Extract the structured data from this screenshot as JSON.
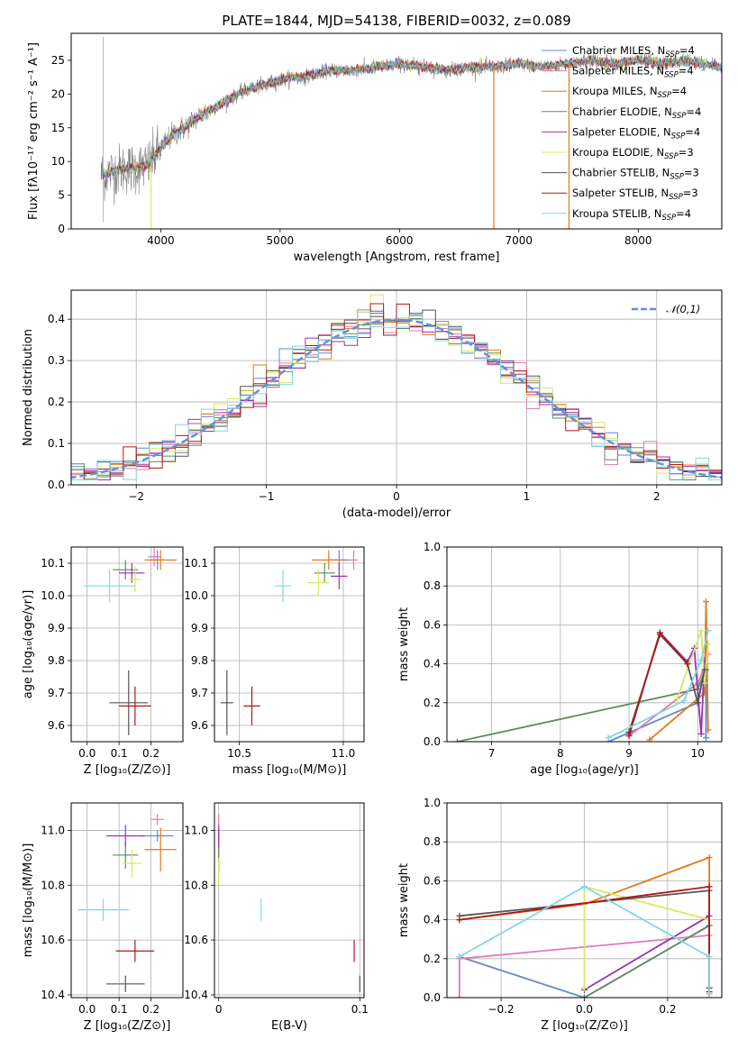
{
  "title": "PLATE=1844, MJD=54138, FIBERID=0032, z=0.089",
  "colors": {
    "Chabrier MILES": "#6685d8",
    "Salpeter MILES": "#e07ab4",
    "Kroupa MILES": "#e07a18",
    "Chabrier ELODIE": "#5e8a5e",
    "Salpeter ELODIE": "#9a30b8",
    "Kroupa ELODIE": "#d8e860",
    "Chabrier STELIB": "#555555",
    "Salpeter STELIB": "#b01818",
    "Kroupa STELIB": "#80d8e0"
  },
  "chart_data": [
    {
      "id": "spectrum",
      "type": "line",
      "xlabel": "wavelength [Angstrom, rest frame]",
      "ylabel": "Flux [fλ10⁻¹⁷ erg cm⁻² s⁻¹ A⁻¹]",
      "xlim": [
        3250,
        8700
      ],
      "ylim": [
        0,
        29
      ],
      "xticks": [
        4000,
        5000,
        6000,
        7000,
        8000
      ],
      "yticks": [
        0,
        5,
        10,
        15,
        20,
        25
      ],
      "grid": false,
      "legend_position": "upper-right",
      "legend": [
        {
          "name": "Chabrier MILES",
          "base": "Chabrier MILES, N",
          "sub": "SSP",
          "tail": "=4"
        },
        {
          "name": "Salpeter MILES",
          "base": "Salpeter MILES, N",
          "sub": "SSP",
          "tail": "=4"
        },
        {
          "name": "Kroupa MILES",
          "base": "Kroupa MILES, N",
          "sub": "SSP",
          "tail": "=4"
        },
        {
          "name": "Chabrier ELODIE",
          "base": "Chabrier ELODIE, N",
          "sub": "SSP",
          "tail": "=4"
        },
        {
          "name": "Salpeter ELODIE",
          "base": "Salpeter ELODIE, N",
          "sub": "SSP",
          "tail": "=4"
        },
        {
          "name": "Kroupa ELODIE",
          "base": "Kroupa ELODIE, N",
          "sub": "SSP",
          "tail": "=3"
        },
        {
          "name": "Chabrier STELIB",
          "base": "Chabrier STELIB, N",
          "sub": "SSP",
          "tail": "=3"
        },
        {
          "name": "Salpeter STELIB",
          "base": "Salpeter STELIB, N",
          "sub": "SSP",
          "tail": "=3"
        },
        {
          "name": "Kroupa STELIB",
          "base": "Kroupa STELIB, N",
          "sub": "SSP",
          "tail": "=4"
        }
      ],
      "continuum": {
        "x": [
          3500,
          3600,
          3700,
          3800,
          3900,
          4000,
          4100,
          4200,
          4300,
          4400,
          4500,
          4600,
          4700,
          4800,
          4900,
          5000,
          5100,
          5200,
          5300,
          5400,
          5600,
          5800,
          6000,
          6200,
          6400,
          6600,
          6800,
          7000,
          7200,
          7400,
          7600,
          7800,
          8000,
          8200,
          8400,
          8700
        ],
        "y": [
          8,
          8.5,
          9,
          9,
          9.5,
          12,
          14,
          15,
          16.5,
          17.5,
          18.5,
          19.5,
          20.5,
          21,
          21.5,
          22,
          22.5,
          22.5,
          23,
          23.5,
          23.5,
          24,
          24.5,
          24,
          23.5,
          24,
          24,
          24.5,
          24,
          24.5,
          25,
          24.5,
          25,
          24.5,
          25,
          24
        ]
      }
    },
    {
      "id": "residuals",
      "type": "line",
      "xlabel": "(data-model)/error",
      "ylabel": "Normed distribution",
      "xlim": [
        -2.5,
        2.5
      ],
      "ylim": [
        0,
        0.47
      ],
      "xticks": [
        -2,
        -1,
        0,
        1,
        2
      ],
      "yticks": [
        0.0,
        0.1,
        0.2,
        0.3,
        0.4
      ],
      "grid": true,
      "legend_position": "upper-right",
      "legend": [
        {
          "name": "𝒩(0,1)"
        }
      ],
      "bin_width": 0.1,
      "gaussian": {
        "mu": 0,
        "sigma": 1
      }
    },
    {
      "id": "age-vs-Z",
      "type": "scatter",
      "xlabel": "Z [log₁₀(Z/Z⊙)]",
      "ylabel": "age  [log₁₀(age/yr)]",
      "xlim": [
        -0.05,
        0.3
      ],
      "ylim": [
        9.55,
        10.15
      ],
      "xticks": [
        0.0,
        0.1,
        0.2
      ],
      "yticks": [
        9.6,
        9.7,
        9.8,
        9.9,
        10.0,
        10.1
      ],
      "grid": true,
      "points": [
        {
          "series": "Chabrier MILES",
          "x": 0.22,
          "y": 10.11,
          "xerr": 0.02,
          "yerr": 0.03
        },
        {
          "series": "Salpeter MILES",
          "x": 0.21,
          "y": 10.12,
          "xerr": 0.02,
          "yerr": 0.03
        },
        {
          "series": "Kroupa MILES",
          "x": 0.23,
          "y": 10.11,
          "xerr": 0.05,
          "yerr": 0.03
        },
        {
          "series": "Chabrier ELODIE",
          "x": 0.12,
          "y": 10.08,
          "xerr": 0.04,
          "yerr": 0.03
        },
        {
          "series": "Salpeter ELODIE",
          "x": 0.14,
          "y": 10.07,
          "xerr": 0.04,
          "yerr": 0.03
        },
        {
          "series": "Kroupa ELODIE",
          "x": 0.15,
          "y": 10.05,
          "xerr": 0.02,
          "yerr": 0.04
        },
        {
          "series": "Chabrier STELIB",
          "x": 0.13,
          "y": 9.67,
          "xerr": 0.06,
          "yerr": 0.1
        },
        {
          "series": "Salpeter STELIB",
          "x": 0.15,
          "y": 9.66,
          "xerr": 0.05,
          "yerr": 0.06
        },
        {
          "series": "Kroupa STELIB",
          "x": 0.07,
          "y": 10.03,
          "xerr": 0.08,
          "yerr": 0.05
        }
      ]
    },
    {
      "id": "age-vs-mass",
      "type": "scatter",
      "xlabel": "mass [log₁₀(M/M⊙)]",
      "ylabel": "",
      "xlim": [
        10.38,
        11.1
      ],
      "ylim": [
        9.55,
        10.15
      ],
      "xticks": [
        10.5,
        11.0
      ],
      "yticks": [
        9.6,
        9.7,
        9.8,
        9.9,
        10.0,
        10.1
      ],
      "grid": true,
      "points": [
        {
          "series": "Chabrier MILES",
          "x": 10.98,
          "y": 10.11,
          "xerr": 0.05,
          "yerr": 0.03
        },
        {
          "series": "Salpeter MILES",
          "x": 11.05,
          "y": 10.11,
          "xerr": 0.02,
          "yerr": 0.03
        },
        {
          "series": "Kroupa MILES",
          "x": 10.93,
          "y": 10.11,
          "xerr": 0.08,
          "yerr": 0.03
        },
        {
          "series": "Chabrier ELODIE",
          "x": 10.91,
          "y": 10.07,
          "xerr": 0.05,
          "yerr": 0.03
        },
        {
          "series": "Salpeter ELODIE",
          "x": 10.98,
          "y": 10.06,
          "xerr": 0.04,
          "yerr": 0.04
        },
        {
          "series": "Kroupa ELODIE",
          "x": 10.88,
          "y": 10.04,
          "xerr": 0.05,
          "yerr": 0.04
        },
        {
          "series": "Chabrier STELIB",
          "x": 10.44,
          "y": 9.67,
          "xerr": 0.03,
          "yerr": 0.1
        },
        {
          "series": "Salpeter STELIB",
          "x": 10.56,
          "y": 9.66,
          "xerr": 0.04,
          "yerr": 0.06
        },
        {
          "series": "Kroupa STELIB",
          "x": 10.71,
          "y": 10.03,
          "xerr": 0.04,
          "yerr": 0.05
        }
      ]
    },
    {
      "id": "weight-vs-age",
      "type": "line",
      "xlabel": "age  [log₁₀(age/yr)]",
      "ylabel": "mass weight",
      "xlim": [
        6.35,
        10.35
      ],
      "ylim": [
        0,
        1.0
      ],
      "xticks": [
        7,
        8,
        9,
        10
      ],
      "yticks": [
        0.0,
        0.2,
        0.4,
        0.6,
        0.8,
        1.0
      ],
      "grid": true,
      "series": [
        {
          "name": "Chabrier MILES",
          "x": [
            8.7,
            10.0,
            10.12,
            10.12
          ],
          "y": [
            0.0,
            0.2,
            0.4,
            0.02
          ]
        },
        {
          "name": "Salpeter MILES",
          "x": [
            9.0,
            10.0,
            10.12,
            10.15
          ],
          "y": [
            0.03,
            0.3,
            0.4,
            0.45
          ]
        },
        {
          "name": "Kroupa MILES",
          "x": [
            9.3,
            10.1,
            10.12,
            10.15
          ],
          "y": [
            0.01,
            0.25,
            0.72,
            0.06
          ]
        },
        {
          "name": "Chabrier ELODIE",
          "x": [
            6.5,
            10.0,
            10.1,
            10.12
          ],
          "y": [
            0.0,
            0.27,
            0.36,
            0.37
          ]
        },
        {
          "name": "Salpeter ELODIE",
          "x": [
            9.0,
            9.45,
            9.85,
            9.95,
            10.05,
            10.1
          ],
          "y": [
            0.04,
            0.56,
            0.41,
            0.48,
            0.04,
            0.42
          ]
        },
        {
          "name": "Kroupa ELODIE",
          "x": [
            9.7,
            10.05,
            10.1,
            10.15
          ],
          "y": [
            0.22,
            0.57,
            0.3,
            0.5
          ]
        },
        {
          "name": "Chabrier STELIB",
          "x": [
            9.0,
            9.45,
            9.85,
            10.0,
            10.1
          ],
          "y": [
            0.05,
            0.55,
            0.4,
            0.2,
            0.37
          ]
        },
        {
          "name": "Salpeter STELIB",
          "x": [
            9.0,
            9.45,
            9.85
          ],
          "y": [
            0.03,
            0.56,
            0.4
          ]
        },
        {
          "name": "Kroupa STELIB",
          "x": [
            8.7,
            9.8,
            10.05,
            10.15
          ],
          "y": [
            0.02,
            0.21,
            0.42,
            0.57
          ]
        }
      ]
    },
    {
      "id": "mass-vs-Z",
      "type": "scatter",
      "xlabel": "Z [log₁₀(Z/Z⊙)]",
      "ylabel": "mass [log₁₀(M/M⊙)]",
      "xlim": [
        -0.05,
        0.3
      ],
      "ylim": [
        10.39,
        11.1
      ],
      "xticks": [
        0.0,
        0.1,
        0.2
      ],
      "yticks": [
        10.4,
        10.6,
        10.8,
        11.0
      ],
      "grid": true,
      "points": [
        {
          "series": "Chabrier MILES",
          "x": 0.22,
          "y": 10.98,
          "xerr": 0.05,
          "yerr": 0.02
        },
        {
          "series": "Salpeter MILES",
          "x": 0.22,
          "y": 11.04,
          "xerr": 0.02,
          "yerr": 0.02
        },
        {
          "series": "Kroupa MILES",
          "x": 0.23,
          "y": 10.93,
          "xerr": 0.05,
          "yerr": 0.08
        },
        {
          "series": "Chabrier ELODIE",
          "x": 0.12,
          "y": 10.91,
          "xerr": 0.04,
          "yerr": 0.05
        },
        {
          "series": "Salpeter ELODIE",
          "x": 0.12,
          "y": 10.98,
          "xerr": 0.06,
          "yerr": 0.04
        },
        {
          "series": "Kroupa ELODIE",
          "x": 0.14,
          "y": 10.88,
          "xerr": 0.03,
          "yerr": 0.05
        },
        {
          "series": "Chabrier STELIB",
          "x": 0.12,
          "y": 10.44,
          "xerr": 0.06,
          "yerr": 0.03
        },
        {
          "series": "Salpeter STELIB",
          "x": 0.15,
          "y": 10.56,
          "xerr": 0.06,
          "yerr": 0.04
        },
        {
          "series": "Kroupa STELIB",
          "x": 0.05,
          "y": 10.71,
          "xerr": 0.08,
          "yerr": 0.04
        }
      ]
    },
    {
      "id": "mass-vs-EBV",
      "type": "scatter",
      "xlabel": "E(B-V)",
      "ylabel": "",
      "xlim": [
        -0.003,
        0.103
      ],
      "ylim": [
        10.39,
        11.1
      ],
      "xticks": [
        0.0,
        0.1
      ],
      "yticks": [
        10.4,
        10.6,
        10.8,
        11.0
      ],
      "grid": true,
      "points": [
        {
          "series": "Chabrier MILES",
          "x": 0.0,
          "y": 10.98,
          "xerr": 0,
          "yerr": 0.02
        },
        {
          "series": "Salpeter MILES",
          "x": 0.0,
          "y": 11.04,
          "xerr": 0,
          "yerr": 0.02
        },
        {
          "series": "Kroupa MILES",
          "x": 0.0,
          "y": 10.93,
          "xerr": 0,
          "yerr": 0.08
        },
        {
          "series": "Chabrier ELODIE",
          "x": 0.0,
          "y": 10.91,
          "xerr": 0,
          "yerr": 0.05
        },
        {
          "series": "Salpeter ELODIE",
          "x": 0.0,
          "y": 10.98,
          "xerr": 0,
          "yerr": 0.04
        },
        {
          "series": "Kroupa ELODIE",
          "x": 0.0,
          "y": 10.85,
          "xerr": 0,
          "yerr": 0.05
        },
        {
          "series": "Chabrier STELIB",
          "x": 0.1,
          "y": 10.44,
          "xerr": 0,
          "yerr": 0.03
        },
        {
          "series": "Salpeter STELIB",
          "x": 0.096,
          "y": 10.56,
          "xerr": 0,
          "yerr": 0.04
        },
        {
          "series": "Kroupa STELIB",
          "x": 0.03,
          "y": 10.71,
          "xerr": 0,
          "yerr": 0.04
        }
      ]
    },
    {
      "id": "weight-vs-Z",
      "type": "line",
      "xlabel": "Z [log₁₀(Z/Z⊙)]",
      "ylabel": "mass weight",
      "xlim": [
        -0.33,
        0.33
      ],
      "ylim": [
        0,
        1.0
      ],
      "xticks": [
        -0.2,
        0.0,
        0.2
      ],
      "yticks": [
        0.0,
        0.2,
        0.4,
        0.6,
        0.8,
        1.0
      ],
      "grid": true,
      "series": [
        {
          "name": "Chabrier MILES",
          "x": [
            -0.3,
            0.0,
            0.3
          ],
          "y": [
            0.21,
            0.0,
            0.37
          ]
        },
        {
          "name": "Salpeter MILES",
          "x": [
            -0.3,
            -0.3,
            0.3
          ],
          "y": [
            0.0,
            0.2,
            0.32
          ]
        },
        {
          "name": "Kroupa MILES",
          "x": [
            -0.3,
            0.0,
            0.3,
            0.3
          ],
          "y": [
            0.4,
            0.48,
            0.72,
            0.05
          ]
        },
        {
          "name": "Chabrier ELODIE",
          "x": [
            0.0,
            0.3,
            0.3
          ],
          "y": [
            0.0,
            0.37,
            0.02
          ]
        },
        {
          "name": "Salpeter ELODIE",
          "x": [
            0.0,
            0.3,
            0.3
          ],
          "y": [
            0.04,
            0.42,
            0.0
          ]
        },
        {
          "name": "Kroupa ELODIE",
          "x": [
            0.0,
            0.0,
            0.3,
            0.3
          ],
          "y": [
            0.05,
            0.57,
            0.4,
            0.0
          ]
        },
        {
          "name": "Chabrier STELIB",
          "x": [
            -0.3,
            0.3,
            0.3
          ],
          "y": [
            0.42,
            0.55,
            0.05
          ]
        },
        {
          "name": "Salpeter STELIB",
          "x": [
            -0.3,
            0.3,
            0.3
          ],
          "y": [
            0.4,
            0.57,
            0.03
          ]
        },
        {
          "name": "Kroupa STELIB",
          "x": [
            -0.3,
            0.0,
            0.3,
            0.3
          ],
          "y": [
            0.21,
            0.57,
            0.21,
            0.02
          ]
        }
      ]
    }
  ]
}
